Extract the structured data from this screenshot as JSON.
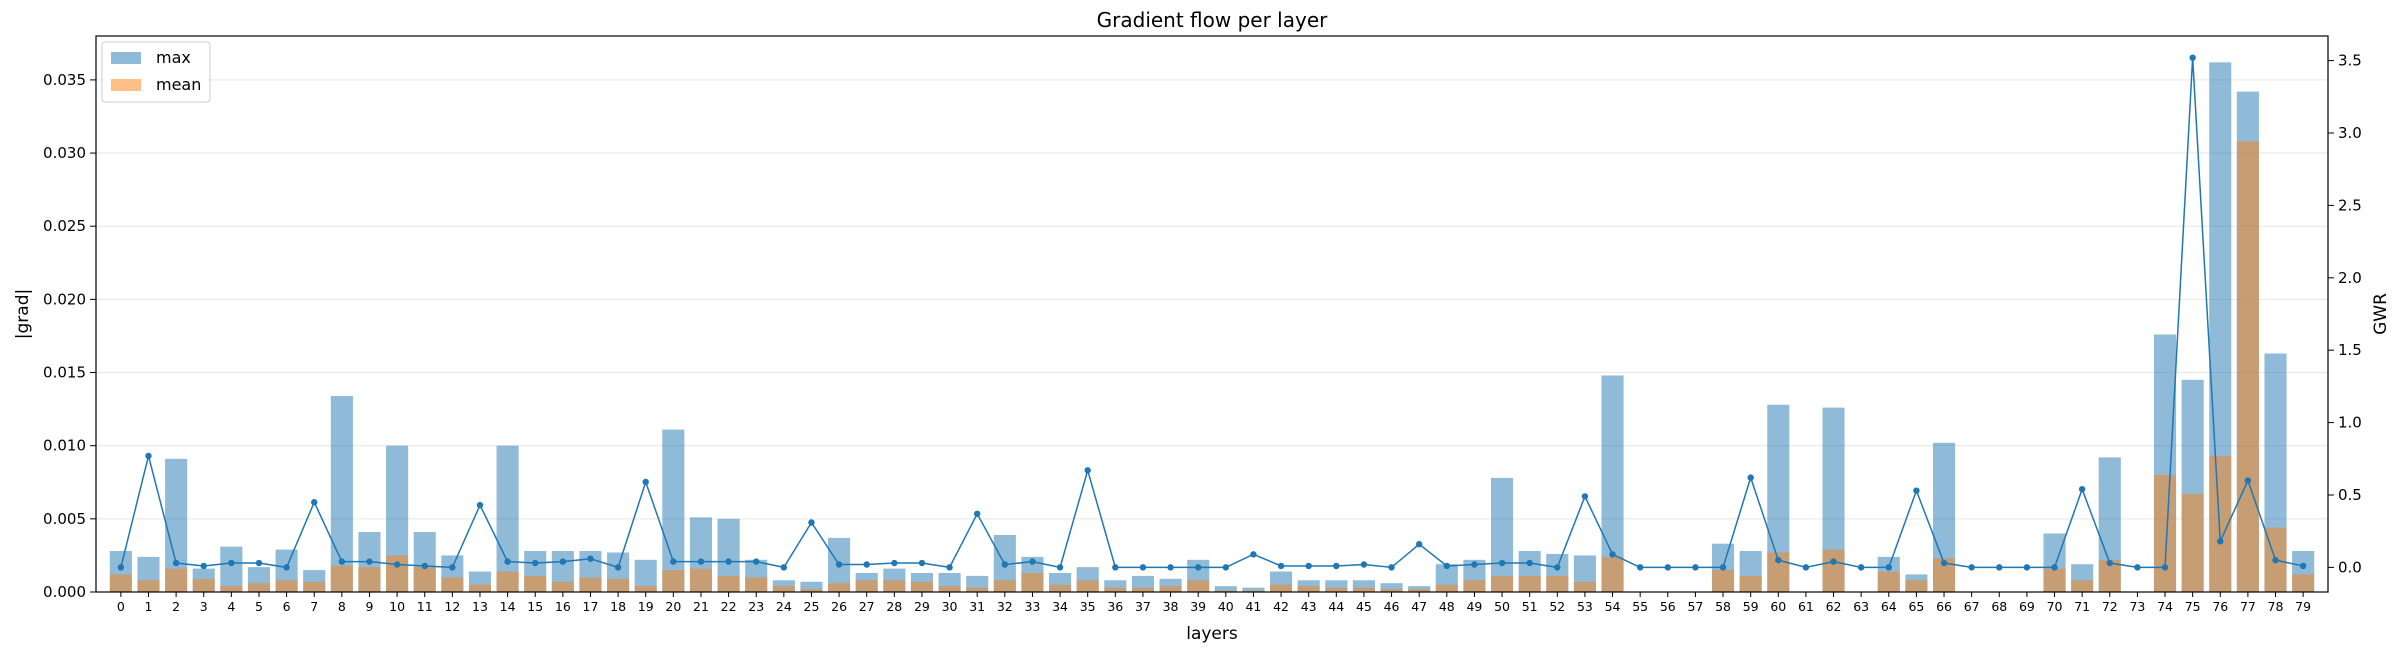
{
  "chart_data": {
    "type": "bar",
    "title": "Gradient flow per layer",
    "xlabel": "layers",
    "ylabel": "|grad|",
    "y2label": "GWR",
    "ylim": [
      0,
      0.038
    ],
    "y2lim": [
      -0.17,
      3.67
    ],
    "yticks": [
      "0.000",
      "0.005",
      "0.010",
      "0.015",
      "0.020",
      "0.025",
      "0.030",
      "0.035"
    ],
    "y2ticks": [
      "0.0",
      "0.5",
      "1.0",
      "1.5",
      "2.0",
      "2.5",
      "3.0",
      "3.5"
    ],
    "grid": "horizontal",
    "legend_position": "top-left",
    "categories": [
      "0",
      "1",
      "2",
      "3",
      "4",
      "5",
      "6",
      "7",
      "8",
      "9",
      "10",
      "11",
      "12",
      "13",
      "14",
      "15",
      "16",
      "17",
      "18",
      "19",
      "20",
      "21",
      "22",
      "23",
      "24",
      "25",
      "26",
      "27",
      "28",
      "29",
      "30",
      "31",
      "32",
      "33",
      "34",
      "35",
      "36",
      "37",
      "38",
      "39",
      "40",
      "41",
      "42",
      "43",
      "44",
      "45",
      "46",
      "47",
      "48",
      "49",
      "50",
      "51",
      "52",
      "53",
      "54",
      "55",
      "56",
      "57",
      "58",
      "59",
      "60",
      "61",
      "62",
      "63",
      "64",
      "65",
      "66",
      "67",
      "68",
      "69",
      "70",
      "71",
      "72",
      "73",
      "74",
      "75",
      "76",
      "77",
      "78",
      "79"
    ],
    "series": [
      {
        "name": "max",
        "kind": "bar",
        "color": "#1f77b4",
        "values": [
          0.0028,
          0.0024,
          0.0091,
          0.0016,
          0.0031,
          0.0017,
          0.0029,
          0.0015,
          0.0134,
          0.0041,
          0.01,
          0.0041,
          0.0025,
          0.0014,
          0.01,
          0.0028,
          0.0028,
          0.0028,
          0.0027,
          0.0022,
          0.0111,
          0.0051,
          0.005,
          0.0022,
          0.0008,
          0.0007,
          0.0037,
          0.0013,
          0.0016,
          0.0013,
          0.0013,
          0.0011,
          0.0039,
          0.0024,
          0.0013,
          0.0017,
          0.0008,
          0.0011,
          0.0009,
          0.0022,
          0.0004,
          0.0003,
          0.0014,
          0.0008,
          0.0008,
          0.0008,
          0.0006,
          0.0004,
          0.0019,
          0.0022,
          0.0078,
          0.0028,
          0.0026,
          0.0025,
          0.0148,
          0.0,
          0.0,
          0.0,
          0.0033,
          0.0028,
          0.0128,
          0.0,
          0.0126,
          0.0,
          0.0024,
          0.0012,
          0.0102,
          0.0,
          0.0,
          0.0,
          0.004,
          0.0019,
          0.0092,
          0.0,
          0.0176,
          0.0145,
          0.0362,
          0.0342,
          0.0163,
          0.0028
        ]
      },
      {
        "name": "mean",
        "kind": "bar",
        "color": "#ff7f0e",
        "values": [
          0.0012,
          0.0008,
          0.0016,
          0.0009,
          0.0004,
          0.0006,
          0.0008,
          0.0007,
          0.0018,
          0.0017,
          0.0025,
          0.0017,
          0.001,
          0.0005,
          0.0014,
          0.0011,
          0.0007,
          0.001,
          0.0009,
          0.0004,
          0.0015,
          0.0016,
          0.0011,
          0.001,
          0.0004,
          0.0002,
          0.0006,
          0.0008,
          0.0008,
          0.0007,
          0.0004,
          0.0003,
          0.0008,
          0.0013,
          0.0005,
          0.0008,
          0.0003,
          0.0003,
          0.0004,
          0.0008,
          0.0001,
          0.0001,
          0.0005,
          0.0004,
          0.0003,
          0.0003,
          0.0002,
          0.0002,
          0.0005,
          0.0008,
          0.0011,
          0.0011,
          0.0011,
          0.0007,
          0.0024,
          0.0,
          0.0,
          0.0,
          0.0015,
          0.0011,
          0.0027,
          0.0,
          0.0029,
          0.0,
          0.0014,
          0.0008,
          0.0023,
          0.0,
          0.0,
          0.0,
          0.0016,
          0.0008,
          0.0022,
          0.0,
          0.008,
          0.0067,
          0.0093,
          0.0308,
          0.0044,
          0.0012
        ]
      },
      {
        "name": "GWR",
        "kind": "line",
        "axis": "right",
        "color": "#1f77b4",
        "values": [
          0.0,
          0.77,
          0.03,
          0.01,
          0.03,
          0.03,
          0.0,
          0.45,
          0.04,
          0.04,
          0.02,
          0.01,
          0.0,
          0.43,
          0.04,
          0.03,
          0.04,
          0.06,
          0.0,
          0.59,
          0.04,
          0.04,
          0.04,
          0.04,
          0.0,
          0.31,
          0.02,
          0.02,
          0.03,
          0.03,
          0.0,
          0.37,
          0.02,
          0.04,
          0.0,
          0.67,
          0.0,
          0.0,
          0.0,
          0.0,
          0.0,
          0.09,
          0.01,
          0.01,
          0.01,
          0.02,
          0.0,
          0.16,
          0.01,
          0.02,
          0.03,
          0.03,
          0.0,
          0.49,
          0.09,
          0.0,
          0.0,
          0.0,
          0.0,
          0.62,
          0.05,
          0.0,
          0.04,
          0.0,
          0.0,
          0.53,
          0.03,
          0.0,
          0.0,
          0.0,
          0.0,
          0.54,
          0.03,
          0.0,
          0.0,
          3.52,
          0.18,
          0.6,
          0.05,
          0.01
        ]
      }
    ]
  }
}
